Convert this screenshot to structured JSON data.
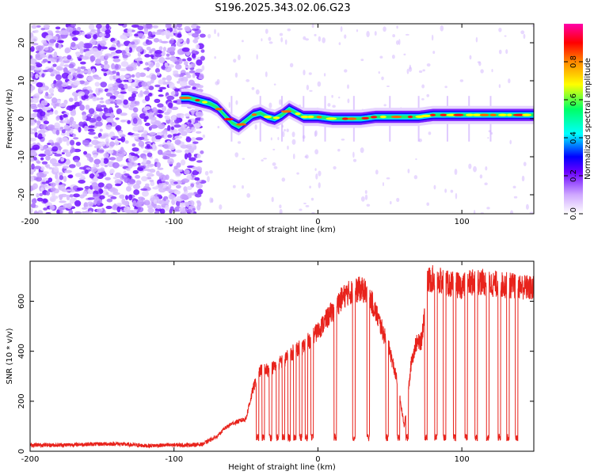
{
  "title": "S196.2025.343.02.06.G23",
  "chart_data": [
    {
      "type": "heatmap",
      "title": "S196.2025.343.02.06.G23",
      "xlabel": "Height of straight line (km)",
      "ylabel": "Frequency (Hz)",
      "xlim": [
        -200,
        150
      ],
      "ylim": [
        -25,
        25
      ],
      "x_ticks": [
        -200,
        -100,
        0,
        100
      ],
      "y_ticks": [
        -20,
        -10,
        0,
        10,
        20
      ],
      "x_tick_labels": [
        "-200",
        "-100",
        "0",
        "100"
      ],
      "y_tick_labels": [
        "-20",
        "-10",
        "0",
        "10",
        "20"
      ],
      "colorbar": {
        "label": "Normalized spectral amplitude",
        "range": [
          0,
          1
        ],
        "ticks": [
          0.0,
          0.2,
          0.4,
          0.6,
          0.8
        ],
        "tick_labels": [
          "0.0",
          "0.2",
          "0.4",
          "0.6",
          "0.8"
        ],
        "colors": [
          "#ffffff",
          "#cfa8ff",
          "#6a00ff",
          "#0000ff",
          "#00ffff",
          "#00ff66",
          "#ffff00",
          "#ff8800",
          "#ff0000",
          "#ff00aa"
        ]
      },
      "noise_region": {
        "x": [
          -200,
          -80
        ],
        "y": [
          -25,
          25
        ]
      },
      "ridge": {
        "x": [
          -95,
          -90,
          -85,
          -80,
          -75,
          -70,
          -65,
          -60,
          -55,
          -50,
          -45,
          -40,
          -35,
          -30,
          -25,
          -20,
          -15,
          -10,
          -5,
          0,
          10,
          20,
          30,
          40,
          50,
          60,
          70,
          80,
          90,
          100,
          110,
          120,
          130,
          140,
          150
        ],
        "y": [
          5.5,
          5.5,
          5.0,
          4.5,
          4.0,
          3.0,
          1.0,
          -1.0,
          -2.0,
          -0.5,
          1.0,
          1.5,
          0.5,
          0.0,
          1.0,
          2.5,
          1.5,
          0.5,
          0.5,
          0.5,
          0.0,
          0.0,
          0.0,
          0.5,
          0.5,
          0.5,
          0.5,
          1.0,
          1.0,
          1.0,
          1.0,
          1.0,
          1.0,
          1.0,
          1.0
        ]
      }
    },
    {
      "type": "line",
      "title": "",
      "xlabel": "Height of straight line (km)",
      "ylabel": "SNR (10 * v/v)",
      "xlim": [
        -200,
        150
      ],
      "ylim": [
        0,
        760
      ],
      "x_ticks": [
        -200,
        -100,
        0,
        100
      ],
      "y_ticks": [
        0,
        200,
        400,
        600
      ],
      "x_tick_labels": [
        "-200",
        "-100",
        "0",
        "100"
      ],
      "y_tick_labels": [
        "0",
        "200",
        "400",
        "600"
      ],
      "series": [
        {
          "name": "SNR",
          "color": "#e8231c",
          "x": [
            -200,
            -180,
            -160,
            -140,
            -120,
            -100,
            -90,
            -80,
            -75,
            -70,
            -65,
            -60,
            -55,
            -50,
            -48,
            -45,
            -42,
            -40,
            -38,
            -35,
            -30,
            -25,
            -20,
            -15,
            -10,
            -5,
            0,
            5,
            10,
            15,
            20,
            25,
            30,
            35,
            40,
            45,
            50,
            55,
            60,
            65,
            68,
            72,
            76,
            80,
            90,
            100,
            110,
            120,
            130,
            140,
            150
          ],
          "y": [
            25,
            25,
            28,
            30,
            22,
            25,
            25,
            28,
            45,
            60,
            90,
            110,
            120,
            130,
            180,
            250,
            300,
            320,
            350,
            320,
            340,
            360,
            380,
            410,
            420,
            450,
            480,
            520,
            560,
            600,
            630,
            640,
            650,
            630,
            560,
            480,
            400,
            280,
            100,
            360,
            430,
            440,
            680,
            690,
            670,
            660,
            680,
            670,
            665,
            660,
            650
          ]
        }
      ]
    }
  ]
}
